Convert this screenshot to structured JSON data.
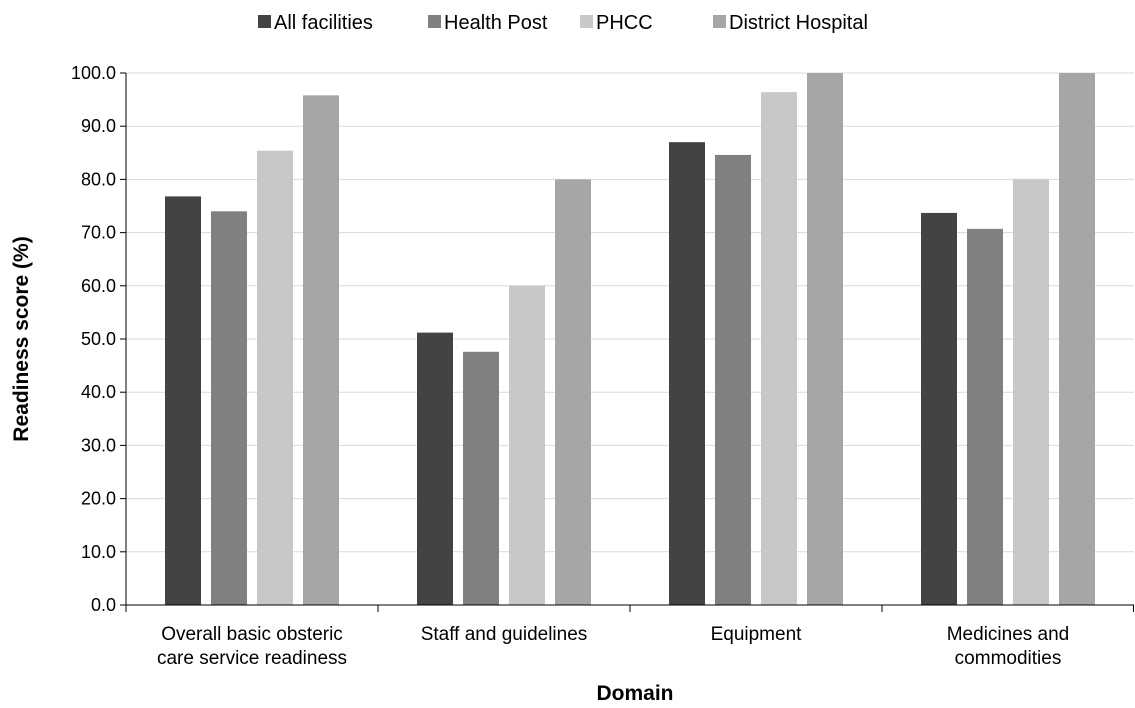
{
  "chart_data": {
    "type": "bar",
    "categories": [
      [
        "Overall basic obsteric",
        "care service readiness"
      ],
      [
        "Staff and guidelines"
      ],
      [
        "Equipment"
      ],
      [
        "Medicines and",
        "commodities"
      ]
    ],
    "series": [
      {
        "name": "All facilities",
        "color": "#434343",
        "values": [
          76.8,
          51.2,
          87.0,
          73.7
        ]
      },
      {
        "name": "Health Post",
        "color": "#808080",
        "values": [
          74.0,
          47.6,
          84.6,
          70.7
        ]
      },
      {
        "name": "PHCC",
        "color": "#c8c8c8",
        "values": [
          85.4,
          60.0,
          96.4,
          80.0
        ]
      },
      {
        "name": "District Hospital",
        "color": "#a6a6a6",
        "values": [
          95.8,
          80.0,
          100.0,
          100.0
        ]
      }
    ],
    "xlabel": "Domain",
    "ylabel": "Readiness score (%)",
    "ylim": [
      0,
      100
    ],
    "yticks": [
      "0.0",
      "10.0",
      "20.0",
      "30.0",
      "40.0",
      "50.0",
      "60.0",
      "70.0",
      "80.0",
      "90.0",
      "100.0"
    ],
    "grid": true,
    "legend_position": "top"
  }
}
